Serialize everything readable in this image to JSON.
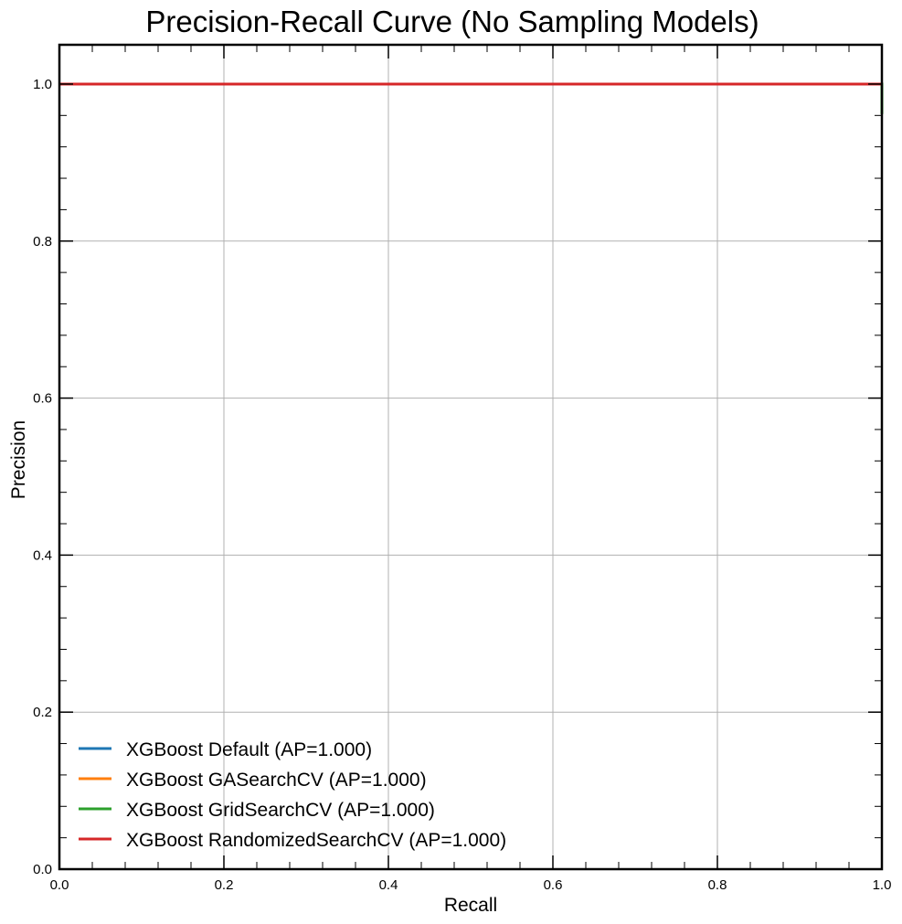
{
  "chart_data": {
    "type": "line",
    "title": "Precision-Recall Curve (No Sampling Models)",
    "xlabel": "Recall",
    "ylabel": "Precision",
    "xlim": [
      0.0,
      1.0
    ],
    "ylim": [
      0.0,
      1.05
    ],
    "x_ticks": [
      "0.0",
      "0.2",
      "0.4",
      "0.6",
      "0.8",
      "1.0"
    ],
    "y_ticks": [
      "0.0",
      "0.2",
      "0.4",
      "0.6",
      "0.8",
      "1.0"
    ],
    "grid": true,
    "legend_position": "lower-left",
    "series": [
      {
        "name": "XGBoost Default (AP=1.000)",
        "color": "#1f77b4",
        "x": [
          0.0,
          1.0,
          1.0
        ],
        "y": [
          1.0,
          1.0,
          0.962
        ]
      },
      {
        "name": "XGBoost GASearchCV (AP=1.000)",
        "color": "#ff7f0e",
        "x": [
          0.0,
          1.0,
          1.0
        ],
        "y": [
          1.0,
          1.0,
          0.962
        ]
      },
      {
        "name": "XGBoost GridSearchCV (AP=1.000)",
        "color": "#2ca02c",
        "x": [
          0.0,
          1.0,
          1.0
        ],
        "y": [
          1.0,
          1.0,
          0.962
        ]
      },
      {
        "name": "XGBoost RandomizedSearchCV (AP=1.000)",
        "color": "#d62728",
        "x": [
          0.0,
          1.0,
          1.0
        ],
        "y": [
          1.0,
          1.0,
          1.0
        ]
      }
    ]
  }
}
